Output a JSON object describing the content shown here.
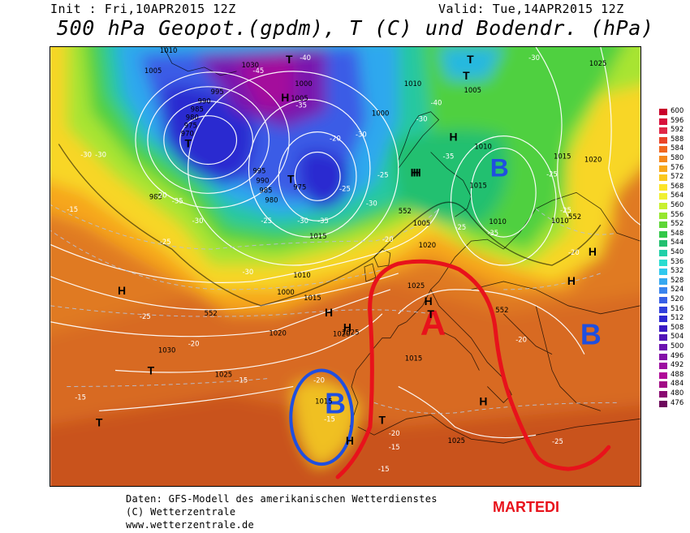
{
  "header": {
    "init": "Init : Fri,10APR2015 12Z",
    "valid": "Valid: Tue,14APR2015 12Z",
    "title": "500 hPa Geopot.(gpdm), T (C) und Bodendr. (hPa)"
  },
  "footer": {
    "line1": "Daten: GFS-Modell des amerikanischen Wetterdienstes",
    "line2": "(C) Wetterzentrale",
    "line3": "www.wetterzentrale.de"
  },
  "annotation": "MARTEDI",
  "colors": {
    "annotation_red": "#e8121b",
    "annotation_blue": "#1f4fe0",
    "isobar": "#ffffff",
    "isotherm": "#aab4c8",
    "coast": "#000000"
  },
  "legend": {
    "labels": [
      "600",
      "596",
      "592",
      "588",
      "584",
      "580",
      "576",
      "572",
      "568",
      "564",
      "560",
      "556",
      "552",
      "548",
      "544",
      "540",
      "536",
      "532",
      "528",
      "524",
      "520",
      "516",
      "512",
      "508",
      "504",
      "500",
      "496",
      "492",
      "488",
      "484",
      "480",
      "476"
    ],
    "colors": [
      "#c8002a",
      "#d8103c",
      "#e02848",
      "#ea4428",
      "#f0661e",
      "#f4881c",
      "#f8a81c",
      "#fac81e",
      "#fce428",
      "#f0f032",
      "#c8f030",
      "#96e630",
      "#5ed638",
      "#34c84a",
      "#22c070",
      "#20d0a8",
      "#28dcd0",
      "#30c8ee",
      "#36a8f0",
      "#3a84ee",
      "#3860e6",
      "#3040dc",
      "#2c28d2",
      "#3a1ac4",
      "#5216b8",
      "#6c12b0",
      "#8410a8",
      "#9c0ea0",
      "#b00c98",
      "#a20c86",
      "#8a0a72",
      "#6e085c"
    ]
  },
  "map_labels": {
    "centers": [
      {
        "t": "B",
        "c": "blue"
      },
      {
        "t": "B",
        "c": "blue"
      },
      {
        "t": "B",
        "c": "blue"
      },
      {
        "t": "A",
        "c": "red"
      },
      {
        "t": "H",
        "c": "k"
      },
      {
        "t": "H",
        "c": "k"
      },
      {
        "t": "H",
        "c": "k"
      },
      {
        "t": "H",
        "c": "k"
      },
      {
        "t": "H",
        "c": "k"
      },
      {
        "t": "H",
        "c": "k"
      },
      {
        "t": "H",
        "c": "k"
      },
      {
        "t": "H",
        "c": "k"
      },
      {
        "t": "H",
        "c": "k"
      },
      {
        "t": "H",
        "c": "k"
      },
      {
        "t": "H",
        "c": "k"
      },
      {
        "t": "H",
        "c": "k"
      },
      {
        "t": "T",
        "c": "k"
      },
      {
        "t": "T",
        "c": "k"
      },
      {
        "t": "T",
        "c": "k"
      },
      {
        "t": "T",
        "c": "k"
      },
      {
        "t": "T",
        "c": "k"
      },
      {
        "t": "T",
        "c": "k"
      },
      {
        "t": "T",
        "c": "k"
      },
      {
        "t": "T",
        "c": "k"
      },
      {
        "t": "T",
        "c": "k"
      }
    ],
    "isobars": [
      "1010",
      "1005",
      "1030",
      "995",
      "990",
      "985",
      "980",
      "975",
      "970",
      "1000",
      "1005",
      "995",
      "990",
      "985",
      "980",
      "975",
      "1000",
      "1010",
      "1015",
      "1020",
      "1025",
      "1030",
      "1025",
      "1015",
      "1010",
      "1005",
      "1020",
      "1010",
      "1015",
      "1010",
      "1005",
      "985",
      "1015",
      "1025",
      "1025",
      "1020",
      "1015",
      "1015",
      "1010",
      "1000",
      "1025",
      "1020"
    ],
    "isotherms": [
      "-30",
      "-30",
      "-35",
      "-40",
      "-45",
      "-40",
      "-35",
      "-35",
      "-30",
      "-30",
      "-25",
      "-20",
      "-20",
      "-15",
      "-25",
      "-30",
      "-35",
      "-30",
      "-25",
      "-25",
      "-20",
      "-25",
      "-25",
      "-20",
      "-20",
      "-25",
      "-15",
      "-15",
      "-20",
      "-15",
      "-15",
      "-20",
      "-25",
      "-30",
      "-30",
      "-20",
      "-15",
      "-25",
      "-35",
      "-30"
    ],
    "heights": [
      "552",
      "552",
      "552",
      "552"
    ]
  }
}
